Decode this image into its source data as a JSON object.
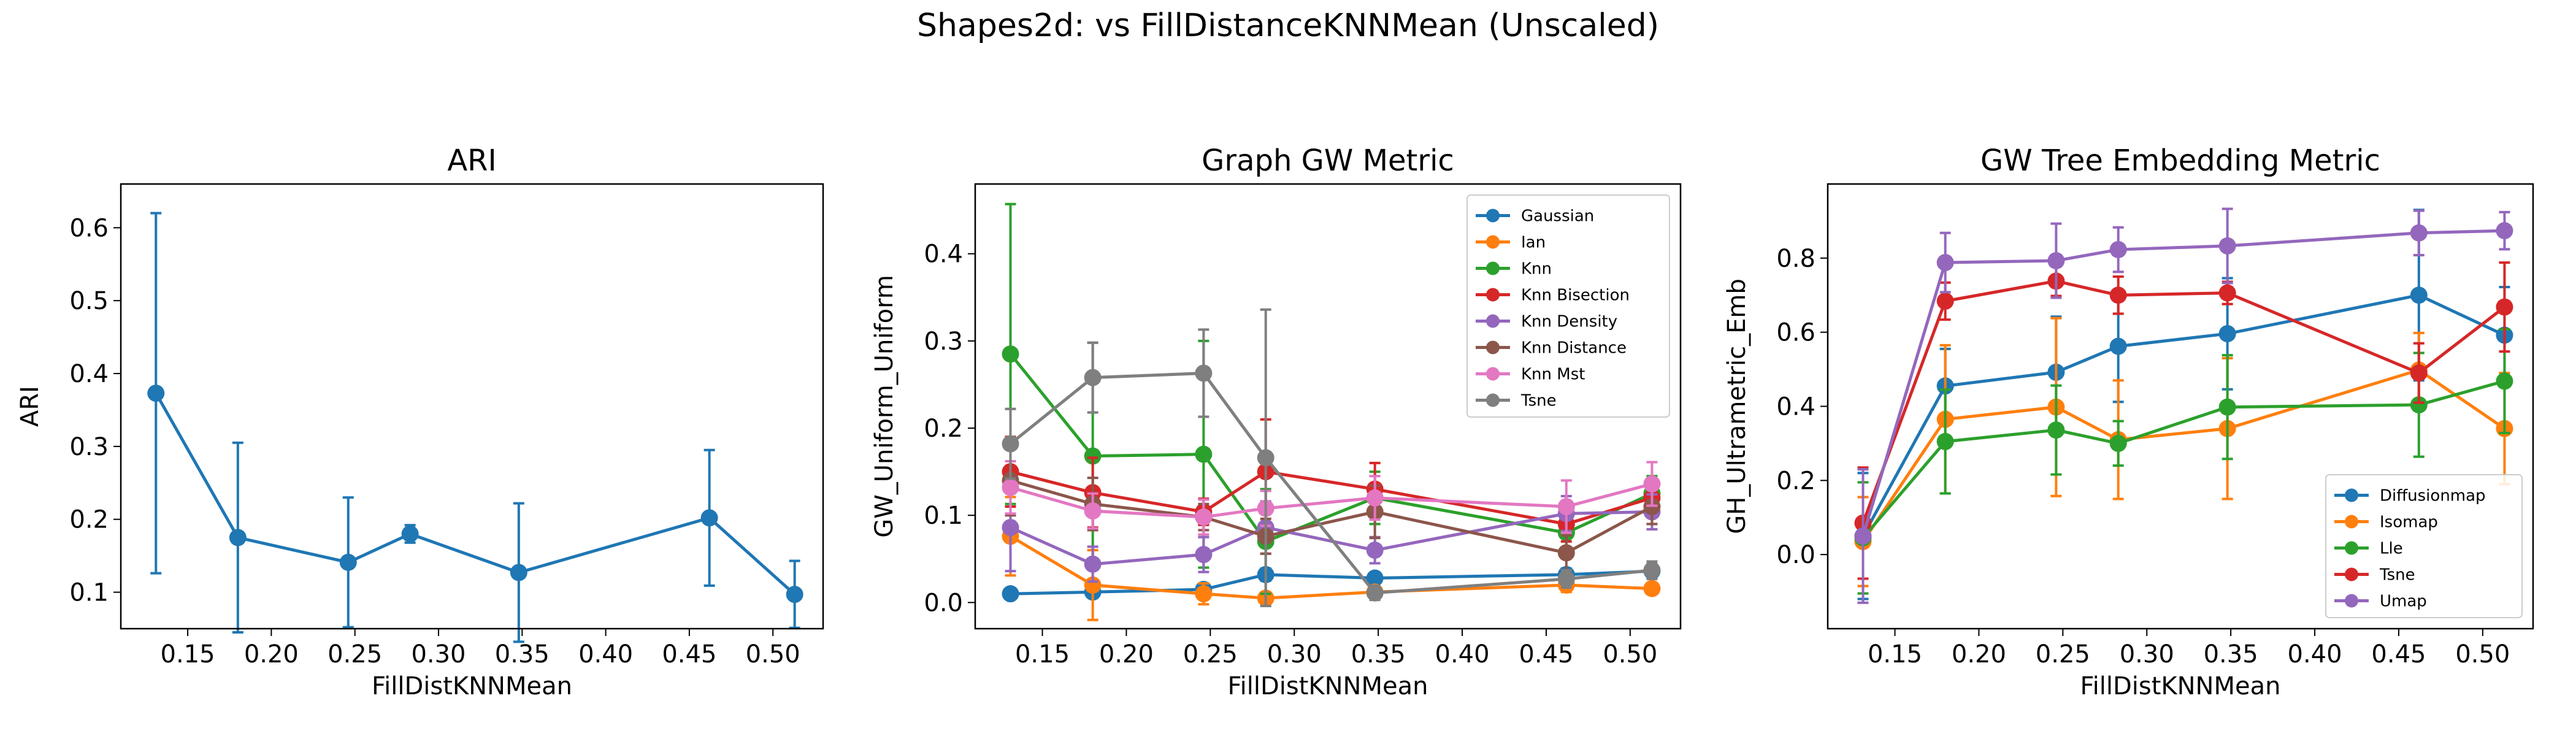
{
  "figure": {
    "suptitle": "Shapes2d: vs FillDistanceKNNMean (Unscaled)"
  },
  "chart_data": [
    {
      "type": "line",
      "title": "ARI",
      "xlabel": "FillDistKNNMean",
      "ylabel": "ARI",
      "xlim": [
        0.11,
        0.53
      ],
      "ylim": [
        0.05,
        0.66
      ],
      "xticks": [
        0.15,
        0.2,
        0.25,
        0.3,
        0.35,
        0.4,
        0.45,
        0.5
      ],
      "xtick_labels": [
        "0.15",
        "0.20",
        "0.25",
        "0.30",
        "0.35",
        "0.40",
        "0.45",
        "0.50"
      ],
      "yticks": [
        0.1,
        0.2,
        0.3,
        0.4,
        0.5,
        0.6
      ],
      "ytick_labels": [
        "0.1",
        "0.2",
        "0.3",
        "0.4",
        "0.5",
        "0.6"
      ],
      "legend": false,
      "x": [
        0.131,
        0.18,
        0.246,
        0.283,
        0.348,
        0.462,
        0.513
      ],
      "series": [
        {
          "color": "#1f77b4",
          "values": [
            0.373,
            0.175,
            0.141,
            0.18,
            0.127,
            0.202,
            0.097
          ],
          "err": [
            0.247,
            0.13,
            0.089,
            0.012,
            0.095,
            0.093,
            0.046
          ]
        }
      ]
    },
    {
      "type": "line",
      "title": "Graph GW Metric",
      "xlabel": "FillDistKNNMean",
      "ylabel": "GW_Uniform_Uniform",
      "xlim": [
        0.11,
        0.53
      ],
      "ylim": [
        -0.03,
        0.48
      ],
      "xticks": [
        0.15,
        0.2,
        0.25,
        0.3,
        0.35,
        0.4,
        0.45,
        0.5
      ],
      "xtick_labels": [
        "0.15",
        "0.20",
        "0.25",
        "0.30",
        "0.35",
        "0.40",
        "0.45",
        "0.50"
      ],
      "yticks": [
        0.0,
        0.1,
        0.2,
        0.3,
        0.4
      ],
      "ytick_labels": [
        "0.0",
        "0.1",
        "0.2",
        "0.3",
        "0.4"
      ],
      "legend": "top-right",
      "x": [
        0.131,
        0.18,
        0.246,
        0.283,
        0.348,
        0.462,
        0.513
      ],
      "series": [
        {
          "name": "Gaussian",
          "color": "#1f77b4",
          "values": [
            0.01,
            0.012,
            0.015,
            0.032,
            0.028,
            0.032,
            0.036
          ],
          "err": [
            0.006,
            0.006,
            0.006,
            0.007,
            0.006,
            0.007,
            0.008
          ]
        },
        {
          "name": "Ian",
          "color": "#ff7f0e",
          "values": [
            0.076,
            0.02,
            0.01,
            0.005,
            0.012,
            0.02,
            0.016
          ],
          "err": [
            0.045,
            0.04,
            0.012,
            0.006,
            0.006,
            0.008,
            0.006
          ]
        },
        {
          "name": "Knn",
          "color": "#2ca02c",
          "values": [
            0.285,
            0.168,
            0.17,
            0.07,
            0.12,
            0.08,
            0.125
          ],
          "err": [
            0.172,
            0.13,
            0.13,
            0.06,
            0.03,
            0.02,
            0.02
          ]
        },
        {
          "name": "Knn Bisection",
          "color": "#d62728",
          "values": [
            0.15,
            0.126,
            0.104,
            0.15,
            0.13,
            0.09,
            0.12
          ],
          "err": [
            0.04,
            0.04,
            0.015,
            0.06,
            0.03,
            0.02,
            0.02
          ]
        },
        {
          "name": "Knn Density",
          "color": "#9467bd",
          "values": [
            0.086,
            0.044,
            0.055,
            0.086,
            0.06,
            0.102,
            0.104
          ],
          "err": [
            0.05,
            0.02,
            0.02,
            0.03,
            0.015,
            0.02,
            0.02
          ]
        },
        {
          "name": "Knn Distance",
          "color": "#8c564b",
          "values": [
            0.14,
            0.113,
            0.098,
            0.076,
            0.104,
            0.057,
            0.11
          ],
          "err": [
            0.04,
            0.03,
            0.015,
            0.02,
            0.03,
            0.02,
            0.02
          ]
        },
        {
          "name": "Knn Mst",
          "color": "#e377c2",
          "values": [
            0.132,
            0.105,
            0.098,
            0.108,
            0.12,
            0.11,
            0.136
          ],
          "err": [
            0.03,
            0.02,
            0.02,
            0.02,
            0.025,
            0.03,
            0.025
          ]
        },
        {
          "name": "Tsne",
          "color": "#7f7f7f",
          "values": [
            0.182,
            0.258,
            0.263,
            0.166,
            0.011,
            0.027,
            0.037
          ],
          "err": [
            0.04,
            0.04,
            0.05,
            0.17,
            0.008,
            0.01,
            0.01
          ]
        }
      ]
    },
    {
      "type": "line",
      "title": "GW Tree Embedding Metric",
      "xlabel": "FillDistKNNMean",
      "ylabel": "GH_Ultrametric_Emb",
      "xlim": [
        0.11,
        0.53
      ],
      "ylim": [
        -0.2,
        1.0
      ],
      "xticks": [
        0.15,
        0.2,
        0.25,
        0.3,
        0.35,
        0.4,
        0.45,
        0.5
      ],
      "xtick_labels": [
        "0.15",
        "0.20",
        "0.25",
        "0.30",
        "0.35",
        "0.40",
        "0.45",
        "0.50"
      ],
      "yticks": [
        0.0,
        0.2,
        0.4,
        0.6,
        0.8
      ],
      "ytick_labels": [
        "0.0",
        "0.2",
        "0.4",
        "0.6",
        "0.8"
      ],
      "legend": "bottom-right",
      "x": [
        0.131,
        0.18,
        0.246,
        0.283,
        0.348,
        0.462,
        0.513
      ],
      "series": [
        {
          "name": "Diffusionmap",
          "color": "#1f77b4",
          "values": [
            0.05,
            0.455,
            0.492,
            0.562,
            0.596,
            0.7,
            0.592
          ],
          "err": [
            0.17,
            0.1,
            0.15,
            0.15,
            0.15,
            0.23,
            0.13
          ]
        },
        {
          "name": "Isomap",
          "color": "#ff7f0e",
          "values": [
            0.035,
            0.365,
            0.398,
            0.31,
            0.34,
            0.498,
            0.34
          ],
          "err": [
            0.12,
            0.2,
            0.24,
            0.16,
            0.19,
            0.1,
            0.15
          ]
        },
        {
          "name": "Lle",
          "color": "#2ca02c",
          "values": [
            0.045,
            0.305,
            0.336,
            0.3,
            0.398,
            0.404,
            0.468
          ],
          "err": [
            0.15,
            0.14,
            0.12,
            0.06,
            0.14,
            0.14,
            0.14
          ]
        },
        {
          "name": "Tsne",
          "color": "#d62728",
          "values": [
            0.085,
            0.684,
            0.738,
            0.7,
            0.706,
            0.49,
            0.668
          ],
          "err": [
            0.15,
            0.05,
            0.04,
            0.05,
            0.03,
            0.08,
            0.12
          ]
        },
        {
          "name": "Umap",
          "color": "#9467bd",
          "values": [
            0.05,
            0.788,
            0.793,
            0.823,
            0.833,
            0.868,
            0.874
          ],
          "err": [
            0.18,
            0.08,
            0.1,
            0.06,
            0.1,
            0.06,
            0.05
          ]
        }
      ]
    }
  ]
}
